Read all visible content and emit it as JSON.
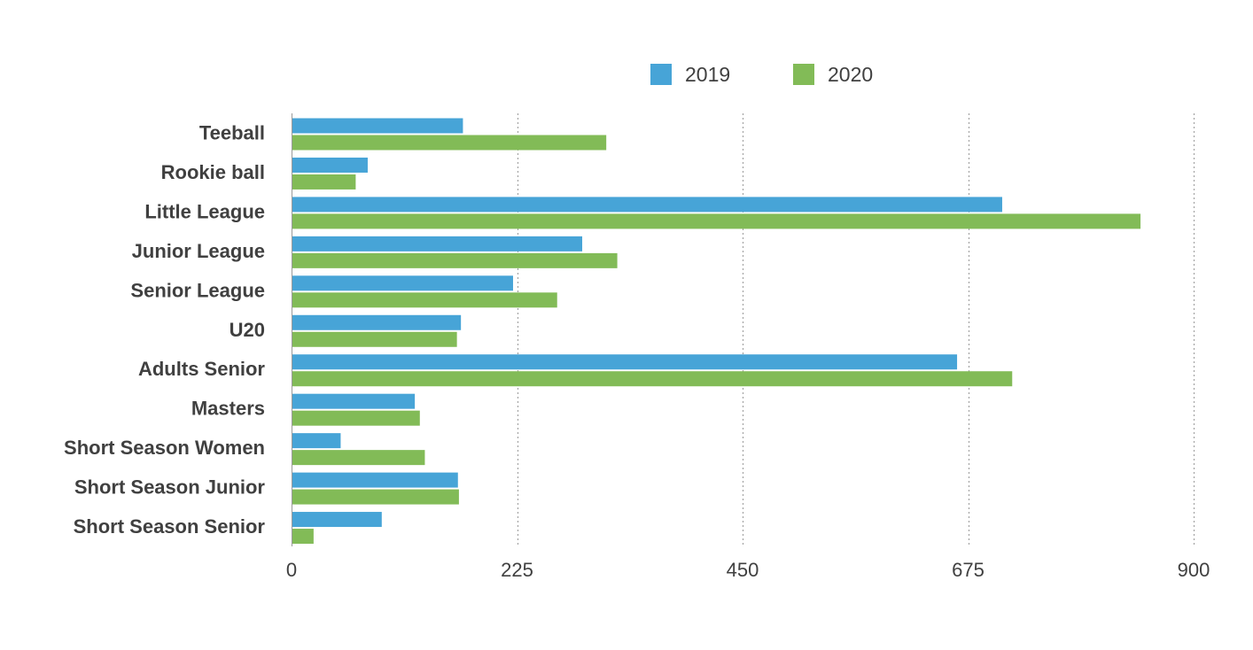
{
  "chart_data": {
    "type": "bar",
    "orientation": "horizontal",
    "categories": [
      "Teeball",
      "Rookie ball",
      "Little League",
      "Junior League",
      "Senior League",
      "U20",
      "Adults Senior",
      "Masters",
      "Short Season Women",
      "Short Season Junior",
      "Short Season Senior"
    ],
    "series": [
      {
        "name": "2019",
        "color": "#47a4d7",
        "values": [
          171,
          76,
          709,
          290,
          221,
          169,
          664,
          123,
          49,
          166,
          90
        ]
      },
      {
        "name": "2020",
        "color": "#82bb57",
        "values": [
          314,
          64,
          847,
          325,
          265,
          165,
          719,
          128,
          133,
          167,
          22
        ]
      }
    ],
    "xlim": [
      0,
      900
    ],
    "xticks": [
      0,
      225,
      450,
      675,
      900
    ],
    "xtick_labels": [
      "0",
      "225",
      "450",
      "675",
      "900"
    ],
    "grid": true,
    "legend": "top-center",
    "title": "",
    "xlabel": "",
    "ylabel": ""
  }
}
